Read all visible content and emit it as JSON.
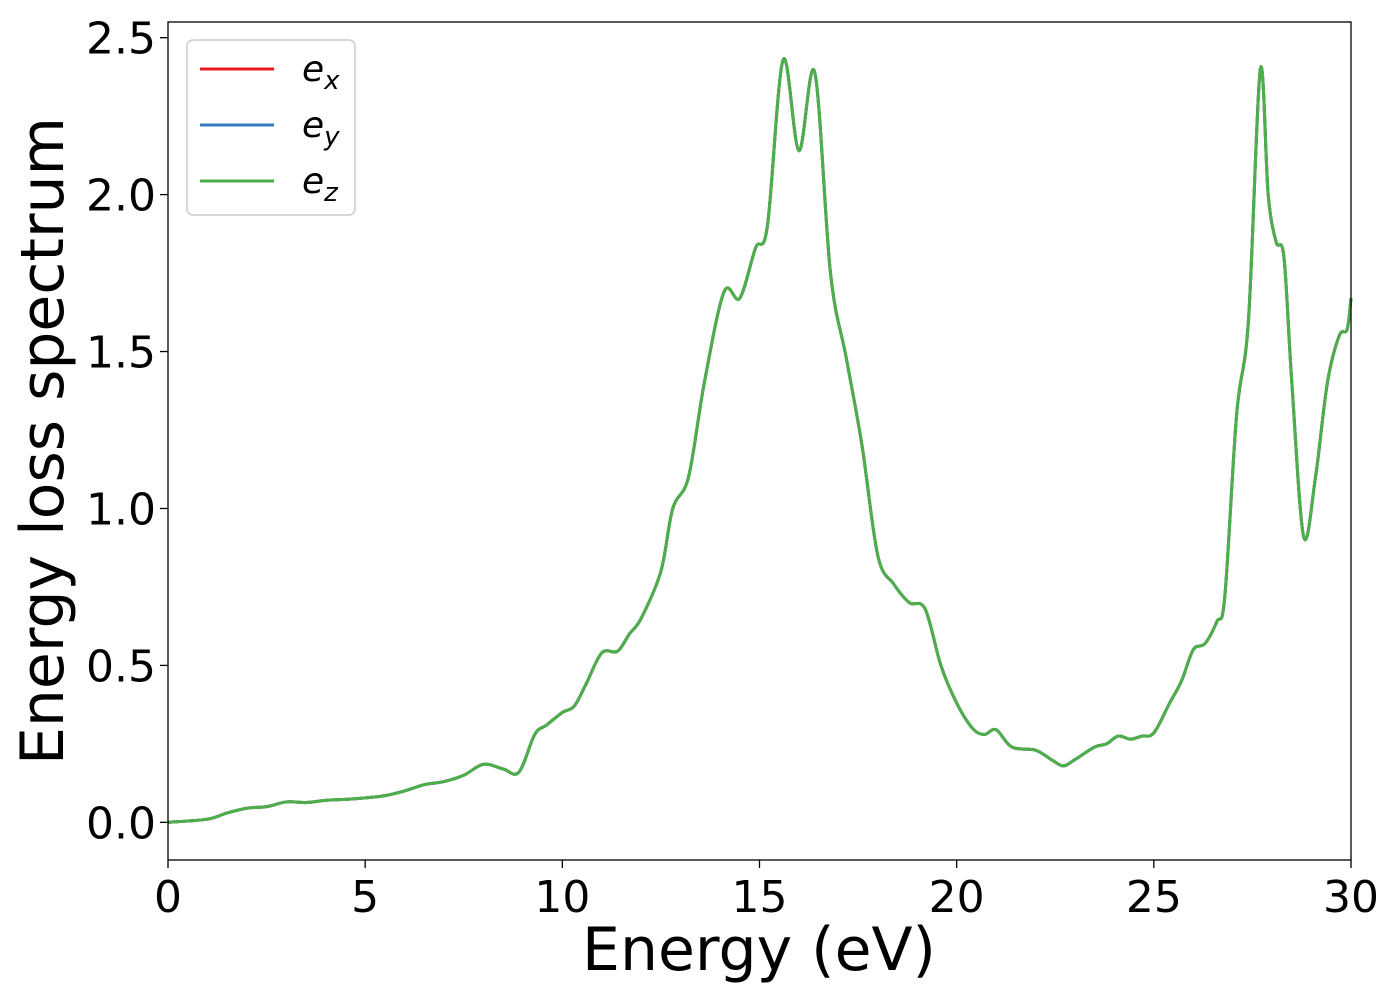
{
  "chart_data": {
    "type": "line",
    "title": "",
    "xlabel": "Energy (eV)",
    "ylabel": "Energy loss spectrum",
    "xlim": [
      0,
      30
    ],
    "ylim": [
      -0.12,
      2.55
    ],
    "xticks": [
      0,
      5,
      10,
      15,
      20,
      25,
      30
    ],
    "xtick_labels": [
      "0",
      "5",
      "10",
      "15",
      "20",
      "25",
      "30"
    ],
    "yticks": [
      0.0,
      0.5,
      1.0,
      1.5,
      2.0,
      2.5
    ],
    "ytick_labels": [
      "0.0",
      "0.5",
      "1.0",
      "1.5",
      "2.0",
      "2.5"
    ],
    "grid": false,
    "legend_position": "top-left",
    "series": [
      {
        "name": "e_x",
        "label_main": "e",
        "label_sub": "x",
        "color": "#e41a1c",
        "x": [
          0,
          1.0,
          1.5,
          2.0,
          2.5,
          3.0,
          3.5,
          4.0,
          4.5,
          5.0,
          5.5,
          6.0,
          6.5,
          7.0,
          7.5,
          8.0,
          8.5,
          8.9,
          9.3,
          9.6,
          10.0,
          10.3,
          10.6,
          11.0,
          11.4,
          11.7,
          12.0,
          12.5,
          12.8,
          13.2,
          13.6,
          14.1,
          14.5,
          14.9,
          15.2,
          15.6,
          16.0,
          16.4,
          16.8,
          17.2,
          17.6,
          18.0,
          18.4,
          18.8,
          19.2,
          19.6,
          20.0,
          20.4,
          20.7,
          21.0,
          21.4,
          22.0,
          22.4,
          22.7,
          23.0,
          23.5,
          23.8,
          24.1,
          24.4,
          24.7,
          25.0,
          25.4,
          25.7,
          26.0,
          26.3,
          26.6,
          26.8,
          27.1,
          27.4,
          27.7,
          27.9,
          28.1,
          28.3,
          28.5,
          28.8,
          29.1,
          29.4,
          29.7,
          29.9,
          30.0
        ],
        "y": [
          0.0,
          0.01,
          0.03,
          0.045,
          0.05,
          0.065,
          0.063,
          0.07,
          0.073,
          0.078,
          0.085,
          0.1,
          0.12,
          0.13,
          0.15,
          0.185,
          0.17,
          0.16,
          0.28,
          0.31,
          0.35,
          0.37,
          0.44,
          0.54,
          0.545,
          0.6,
          0.65,
          0.8,
          1.0,
          1.1,
          1.4,
          1.69,
          1.67,
          1.83,
          1.9,
          2.43,
          2.14,
          2.39,
          1.75,
          1.48,
          1.2,
          0.85,
          0.76,
          0.7,
          0.68,
          0.5,
          0.38,
          0.3,
          0.28,
          0.295,
          0.24,
          0.23,
          0.2,
          0.18,
          0.2,
          0.24,
          0.25,
          0.275,
          0.265,
          0.275,
          0.285,
          0.38,
          0.45,
          0.55,
          0.57,
          0.64,
          0.72,
          1.3,
          1.6,
          2.4,
          2.0,
          1.85,
          1.8,
          1.4,
          0.91,
          1.1,
          1.4,
          1.55,
          1.57,
          1.67
        ]
      },
      {
        "name": "e_y",
        "label_main": "e",
        "label_sub": "y",
        "color": "#377eb8",
        "x": [
          0,
          1.0,
          1.5,
          2.0,
          2.5,
          3.0,
          3.5,
          4.0,
          4.5,
          5.0,
          5.5,
          6.0,
          6.5,
          7.0,
          7.5,
          8.0,
          8.5,
          8.9,
          9.3,
          9.6,
          10.0,
          10.3,
          10.6,
          11.0,
          11.4,
          11.7,
          12.0,
          12.5,
          12.8,
          13.2,
          13.6,
          14.1,
          14.5,
          14.9,
          15.2,
          15.6,
          16.0,
          16.4,
          16.8,
          17.2,
          17.6,
          18.0,
          18.4,
          18.8,
          19.2,
          19.6,
          20.0,
          20.4,
          20.7,
          21.0,
          21.4,
          22.0,
          22.4,
          22.7,
          23.0,
          23.5,
          23.8,
          24.1,
          24.4,
          24.7,
          25.0,
          25.4,
          25.7,
          26.0,
          26.3,
          26.6,
          26.8,
          27.1,
          27.4,
          27.7,
          27.9,
          28.1,
          28.3,
          28.5,
          28.8,
          29.1,
          29.4,
          29.7,
          29.9,
          30.0
        ],
        "y": [
          0.0,
          0.01,
          0.03,
          0.045,
          0.05,
          0.065,
          0.063,
          0.07,
          0.073,
          0.078,
          0.085,
          0.1,
          0.12,
          0.13,
          0.15,
          0.185,
          0.17,
          0.16,
          0.28,
          0.31,
          0.35,
          0.37,
          0.44,
          0.54,
          0.545,
          0.6,
          0.65,
          0.8,
          1.0,
          1.1,
          1.4,
          1.69,
          1.67,
          1.83,
          1.9,
          2.43,
          2.14,
          2.39,
          1.75,
          1.48,
          1.2,
          0.85,
          0.76,
          0.7,
          0.68,
          0.5,
          0.38,
          0.3,
          0.28,
          0.295,
          0.24,
          0.23,
          0.2,
          0.18,
          0.2,
          0.24,
          0.25,
          0.275,
          0.265,
          0.275,
          0.285,
          0.38,
          0.45,
          0.55,
          0.57,
          0.64,
          0.72,
          1.3,
          1.6,
          2.4,
          2.0,
          1.85,
          1.8,
          1.4,
          0.91,
          1.1,
          1.4,
          1.55,
          1.57,
          1.67
        ]
      },
      {
        "name": "e_z",
        "label_main": "e",
        "label_sub": "z",
        "color": "#4daf4a",
        "x": [
          0,
          1.0,
          1.5,
          2.0,
          2.5,
          3.0,
          3.5,
          4.0,
          4.5,
          5.0,
          5.5,
          6.0,
          6.5,
          7.0,
          7.5,
          8.0,
          8.5,
          8.9,
          9.3,
          9.6,
          10.0,
          10.3,
          10.6,
          11.0,
          11.4,
          11.7,
          12.0,
          12.5,
          12.8,
          13.2,
          13.6,
          14.1,
          14.5,
          14.9,
          15.2,
          15.6,
          16.0,
          16.4,
          16.8,
          17.2,
          17.6,
          18.0,
          18.4,
          18.8,
          19.2,
          19.6,
          20.0,
          20.4,
          20.7,
          21.0,
          21.4,
          22.0,
          22.4,
          22.7,
          23.0,
          23.5,
          23.8,
          24.1,
          24.4,
          24.7,
          25.0,
          25.4,
          25.7,
          26.0,
          26.3,
          26.6,
          26.8,
          27.1,
          27.4,
          27.7,
          27.9,
          28.1,
          28.3,
          28.5,
          28.8,
          29.1,
          29.4,
          29.7,
          29.9,
          30.0
        ],
        "y": [
          0.0,
          0.01,
          0.03,
          0.045,
          0.05,
          0.065,
          0.063,
          0.07,
          0.073,
          0.078,
          0.085,
          0.1,
          0.12,
          0.13,
          0.15,
          0.185,
          0.17,
          0.16,
          0.28,
          0.31,
          0.35,
          0.37,
          0.44,
          0.54,
          0.545,
          0.6,
          0.65,
          0.8,
          1.0,
          1.1,
          1.4,
          1.69,
          1.67,
          1.83,
          1.9,
          2.43,
          2.14,
          2.39,
          1.75,
          1.48,
          1.2,
          0.85,
          0.76,
          0.7,
          0.68,
          0.5,
          0.38,
          0.3,
          0.28,
          0.295,
          0.24,
          0.23,
          0.2,
          0.18,
          0.2,
          0.24,
          0.25,
          0.275,
          0.265,
          0.275,
          0.285,
          0.38,
          0.45,
          0.55,
          0.57,
          0.64,
          0.72,
          1.3,
          1.6,
          2.4,
          2.0,
          1.85,
          1.8,
          1.4,
          0.91,
          1.1,
          1.4,
          1.55,
          1.57,
          1.67
        ]
      }
    ]
  }
}
